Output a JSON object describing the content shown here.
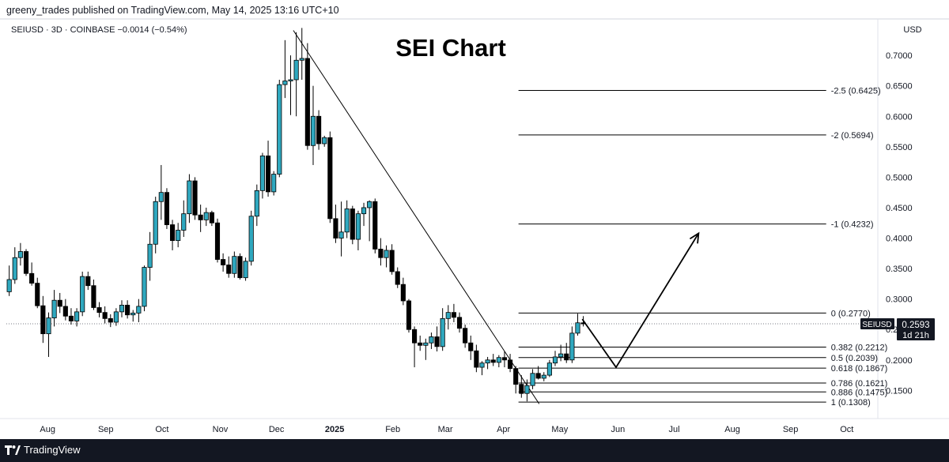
{
  "header": {
    "published_by": "greeny_trades published on TradingView.com, May 14, 2025 13:16 UTC+10"
  },
  "footer": {
    "brand": "TradingView"
  },
  "chart_data": {
    "type": "candlestick",
    "title": "SEI Chart",
    "symbol_line": "SEIUSD · 3D · COINBASE  −0.0014 (−0.54%)",
    "currency": "USD",
    "price_tag": {
      "symbol": "SEIUSD",
      "price": "0.2593",
      "countdown": "1d 21h",
      "value": 0.2593
    },
    "y_ticks": [
      0.15,
      0.2,
      0.25,
      0.3,
      0.35,
      0.4,
      0.45,
      0.5,
      0.55,
      0.6,
      0.65,
      0.7
    ],
    "y_tick_labels": [
      "0.1500",
      "0.2000",
      "0.2500",
      "0.3000",
      "0.3500",
      "0.4000",
      "0.4500",
      "0.5000",
      "0.5500",
      "0.6000",
      "0.6500",
      "0.7000"
    ],
    "ylim": [
      0.109,
      0.752
    ],
    "x_axis": {
      "start": "2024-07-10",
      "end": "2025-10-15",
      "labels": [
        {
          "date": "2024-08-01",
          "text": "Aug",
          "bold": false
        },
        {
          "date": "2024-09-01",
          "text": "Sep",
          "bold": false
        },
        {
          "date": "2024-10-01",
          "text": "Oct",
          "bold": false
        },
        {
          "date": "2024-11-01",
          "text": "Nov",
          "bold": false
        },
        {
          "date": "2024-12-01",
          "text": "Dec",
          "bold": false
        },
        {
          "date": "2025-01-01",
          "text": "2025",
          "bold": true
        },
        {
          "date": "2025-02-01",
          "text": "Feb",
          "bold": false
        },
        {
          "date": "2025-03-01",
          "text": "Mar",
          "bold": false
        },
        {
          "date": "2025-04-01",
          "text": "Apr",
          "bold": false
        },
        {
          "date": "2025-05-01",
          "text": "May",
          "bold": false
        },
        {
          "date": "2025-06-01",
          "text": "Jun",
          "bold": false
        },
        {
          "date": "2025-07-01",
          "text": "Jul",
          "bold": false
        },
        {
          "date": "2025-08-01",
          "text": "Aug",
          "bold": false
        },
        {
          "date": "2025-09-01",
          "text": "Sep",
          "bold": false
        },
        {
          "date": "2025-10-01",
          "text": "Oct",
          "bold": false
        }
      ]
    },
    "candle_interval_days": 3,
    "candles": [
      {
        "date": "2024-07-10",
        "o": 0.312,
        "h": 0.355,
        "l": 0.305,
        "c": 0.332
      },
      {
        "date": "2024-07-13",
        "o": 0.332,
        "h": 0.385,
        "l": 0.325,
        "c": 0.368
      },
      {
        "date": "2024-07-16",
        "o": 0.368,
        "h": 0.392,
        "l": 0.355,
        "c": 0.378
      },
      {
        "date": "2024-07-19",
        "o": 0.378,
        "h": 0.382,
        "l": 0.338,
        "c": 0.342
      },
      {
        "date": "2024-07-22",
        "o": 0.342,
        "h": 0.36,
        "l": 0.322,
        "c": 0.326
      },
      {
        "date": "2024-07-25",
        "o": 0.326,
        "h": 0.335,
        "l": 0.285,
        "c": 0.289
      },
      {
        "date": "2024-07-28",
        "o": 0.289,
        "h": 0.305,
        "l": 0.228,
        "c": 0.243
      },
      {
        "date": "2024-07-31",
        "o": 0.243,
        "h": 0.278,
        "l": 0.205,
        "c": 0.269
      },
      {
        "date": "2024-08-03",
        "o": 0.269,
        "h": 0.315,
        "l": 0.255,
        "c": 0.298
      },
      {
        "date": "2024-08-06",
        "o": 0.298,
        "h": 0.31,
        "l": 0.277,
        "c": 0.288
      },
      {
        "date": "2024-08-09",
        "o": 0.288,
        "h": 0.3,
        "l": 0.265,
        "c": 0.272
      },
      {
        "date": "2024-08-12",
        "o": 0.272,
        "h": 0.285,
        "l": 0.258,
        "c": 0.264
      },
      {
        "date": "2024-08-15",
        "o": 0.264,
        "h": 0.285,
        "l": 0.255,
        "c": 0.279
      },
      {
        "date": "2024-08-18",
        "o": 0.279,
        "h": 0.345,
        "l": 0.272,
        "c": 0.337
      },
      {
        "date": "2024-08-21",
        "o": 0.337,
        "h": 0.345,
        "l": 0.315,
        "c": 0.322
      },
      {
        "date": "2024-08-24",
        "o": 0.322,
        "h": 0.332,
        "l": 0.282,
        "c": 0.286
      },
      {
        "date": "2024-08-27",
        "o": 0.286,
        "h": 0.295,
        "l": 0.27,
        "c": 0.278
      },
      {
        "date": "2024-08-30",
        "o": 0.278,
        "h": 0.288,
        "l": 0.26,
        "c": 0.268
      },
      {
        "date": "2024-09-02",
        "o": 0.268,
        "h": 0.275,
        "l": 0.254,
        "c": 0.262
      },
      {
        "date": "2024-09-05",
        "o": 0.262,
        "h": 0.285,
        "l": 0.256,
        "c": 0.279
      },
      {
        "date": "2024-09-08",
        "o": 0.279,
        "h": 0.298,
        "l": 0.27,
        "c": 0.29
      },
      {
        "date": "2024-09-11",
        "o": 0.29,
        "h": 0.298,
        "l": 0.268,
        "c": 0.274
      },
      {
        "date": "2024-09-14",
        "o": 0.274,
        "h": 0.282,
        "l": 0.263,
        "c": 0.277
      },
      {
        "date": "2024-09-17",
        "o": 0.277,
        "h": 0.3,
        "l": 0.262,
        "c": 0.288
      },
      {
        "date": "2024-09-20",
        "o": 0.288,
        "h": 0.355,
        "l": 0.28,
        "c": 0.352
      },
      {
        "date": "2024-09-23",
        "o": 0.352,
        "h": 0.41,
        "l": 0.33,
        "c": 0.39
      },
      {
        "date": "2024-09-26",
        "o": 0.39,
        "h": 0.468,
        "l": 0.375,
        "c": 0.46
      },
      {
        "date": "2024-09-29",
        "o": 0.46,
        "h": 0.52,
        "l": 0.43,
        "c": 0.475
      },
      {
        "date": "2024-10-02",
        "o": 0.475,
        "h": 0.482,
        "l": 0.415,
        "c": 0.422
      },
      {
        "date": "2024-10-05",
        "o": 0.422,
        "h": 0.43,
        "l": 0.38,
        "c": 0.396
      },
      {
        "date": "2024-10-08",
        "o": 0.396,
        "h": 0.425,
        "l": 0.385,
        "c": 0.413
      },
      {
        "date": "2024-10-11",
        "o": 0.413,
        "h": 0.462,
        "l": 0.402,
        "c": 0.44
      },
      {
        "date": "2024-10-14",
        "o": 0.44,
        "h": 0.505,
        "l": 0.425,
        "c": 0.494
      },
      {
        "date": "2024-10-17",
        "o": 0.494,
        "h": 0.5,
        "l": 0.43,
        "c": 0.438
      },
      {
        "date": "2024-10-20",
        "o": 0.438,
        "h": 0.455,
        "l": 0.41,
        "c": 0.43
      },
      {
        "date": "2024-10-23",
        "o": 0.43,
        "h": 0.45,
        "l": 0.42,
        "c": 0.442
      },
      {
        "date": "2024-10-26",
        "o": 0.442,
        "h": 0.445,
        "l": 0.42,
        "c": 0.425
      },
      {
        "date": "2024-10-29",
        "o": 0.425,
        "h": 0.432,
        "l": 0.36,
        "c": 0.365
      },
      {
        "date": "2024-11-01",
        "o": 0.365,
        "h": 0.375,
        "l": 0.345,
        "c": 0.356
      },
      {
        "date": "2024-11-04",
        "o": 0.356,
        "h": 0.37,
        "l": 0.335,
        "c": 0.342
      },
      {
        "date": "2024-11-07",
        "o": 0.342,
        "h": 0.378,
        "l": 0.335,
        "c": 0.37
      },
      {
        "date": "2024-11-10",
        "o": 0.37,
        "h": 0.375,
        "l": 0.332,
        "c": 0.335
      },
      {
        "date": "2024-11-13",
        "o": 0.335,
        "h": 0.368,
        "l": 0.33,
        "c": 0.362
      },
      {
        "date": "2024-11-16",
        "o": 0.362,
        "h": 0.445,
        "l": 0.355,
        "c": 0.436
      },
      {
        "date": "2024-11-19",
        "o": 0.436,
        "h": 0.488,
        "l": 0.42,
        "c": 0.478
      },
      {
        "date": "2024-11-22",
        "o": 0.478,
        "h": 0.54,
        "l": 0.465,
        "c": 0.535
      },
      {
        "date": "2024-11-25",
        "o": 0.535,
        "h": 0.56,
        "l": 0.468,
        "c": 0.476
      },
      {
        "date": "2024-11-28",
        "o": 0.476,
        "h": 0.51,
        "l": 0.47,
        "c": 0.505
      },
      {
        "date": "2024-12-01",
        "o": 0.505,
        "h": 0.66,
        "l": 0.5,
        "c": 0.652
      },
      {
        "date": "2024-12-04",
        "o": 0.652,
        "h": 0.725,
        "l": 0.63,
        "c": 0.658
      },
      {
        "date": "2024-12-07",
        "o": 0.658,
        "h": 0.7,
        "l": 0.602,
        "c": 0.66
      },
      {
        "date": "2024-12-10",
        "o": 0.66,
        "h": 0.738,
        "l": 0.6,
        "c": 0.692
      },
      {
        "date": "2024-12-13",
        "o": 0.692,
        "h": 0.745,
        "l": 0.66,
        "c": 0.695
      },
      {
        "date": "2024-12-16",
        "o": 0.695,
        "h": 0.72,
        "l": 0.545,
        "c": 0.552
      },
      {
        "date": "2024-12-19",
        "o": 0.552,
        "h": 0.65,
        "l": 0.52,
        "c": 0.6
      },
      {
        "date": "2024-12-22",
        "o": 0.6,
        "h": 0.61,
        "l": 0.545,
        "c": 0.555
      },
      {
        "date": "2024-12-25",
        "o": 0.555,
        "h": 0.568,
        "l": 0.55,
        "c": 0.565
      },
      {
        "date": "2024-12-28",
        "o": 0.565,
        "h": 0.575,
        "l": 0.425,
        "c": 0.432
      },
      {
        "date": "2024-12-31",
        "o": 0.432,
        "h": 0.455,
        "l": 0.392,
        "c": 0.4
      },
      {
        "date": "2025-01-03",
        "o": 0.4,
        "h": 0.46,
        "l": 0.37,
        "c": 0.41
      },
      {
        "date": "2025-01-06",
        "o": 0.41,
        "h": 0.462,
        "l": 0.4,
        "c": 0.448
      },
      {
        "date": "2025-01-09",
        "o": 0.448,
        "h": 0.453,
        "l": 0.39,
        "c": 0.398
      },
      {
        "date": "2025-01-12",
        "o": 0.398,
        "h": 0.445,
        "l": 0.38,
        "c": 0.44
      },
      {
        "date": "2025-01-15",
        "o": 0.44,
        "h": 0.458,
        "l": 0.42,
        "c": 0.45
      },
      {
        "date": "2025-01-18",
        "o": 0.45,
        "h": 0.462,
        "l": 0.395,
        "c": 0.46
      },
      {
        "date": "2025-01-21",
        "o": 0.46,
        "h": 0.465,
        "l": 0.375,
        "c": 0.382
      },
      {
        "date": "2025-01-24",
        "o": 0.382,
        "h": 0.4,
        "l": 0.355,
        "c": 0.368
      },
      {
        "date": "2025-01-27",
        "o": 0.368,
        "h": 0.388,
        "l": 0.352,
        "c": 0.38
      },
      {
        "date": "2025-01-30",
        "o": 0.38,
        "h": 0.39,
        "l": 0.34,
        "c": 0.345
      },
      {
        "date": "2025-02-02",
        "o": 0.345,
        "h": 0.352,
        "l": 0.318,
        "c": 0.324
      },
      {
        "date": "2025-02-05",
        "o": 0.324,
        "h": 0.335,
        "l": 0.29,
        "c": 0.297
      },
      {
        "date": "2025-02-08",
        "o": 0.297,
        "h": 0.3,
        "l": 0.245,
        "c": 0.25
      },
      {
        "date": "2025-02-11",
        "o": 0.25,
        "h": 0.255,
        "l": 0.188,
        "c": 0.228
      },
      {
        "date": "2025-02-14",
        "o": 0.228,
        "h": 0.24,
        "l": 0.215,
        "c": 0.224
      },
      {
        "date": "2025-02-17",
        "o": 0.224,
        "h": 0.235,
        "l": 0.2,
        "c": 0.228
      },
      {
        "date": "2025-02-20",
        "o": 0.228,
        "h": 0.245,
        "l": 0.218,
        "c": 0.238
      },
      {
        "date": "2025-02-23",
        "o": 0.238,
        "h": 0.255,
        "l": 0.214,
        "c": 0.222
      },
      {
        "date": "2025-02-26",
        "o": 0.222,
        "h": 0.285,
        "l": 0.215,
        "c": 0.268
      },
      {
        "date": "2025-03-01",
        "o": 0.268,
        "h": 0.29,
        "l": 0.25,
        "c": 0.278
      },
      {
        "date": "2025-03-04",
        "o": 0.278,
        "h": 0.292,
        "l": 0.262,
        "c": 0.27
      },
      {
        "date": "2025-03-07",
        "o": 0.27,
        "h": 0.278,
        "l": 0.245,
        "c": 0.252
      },
      {
        "date": "2025-03-10",
        "o": 0.252,
        "h": 0.258,
        "l": 0.22,
        "c": 0.228
      },
      {
        "date": "2025-03-13",
        "o": 0.228,
        "h": 0.24,
        "l": 0.2,
        "c": 0.215
      },
      {
        "date": "2025-03-16",
        "o": 0.215,
        "h": 0.225,
        "l": 0.18,
        "c": 0.188
      },
      {
        "date": "2025-03-19",
        "o": 0.188,
        "h": 0.198,
        "l": 0.175,
        "c": 0.195
      },
      {
        "date": "2025-03-22",
        "o": 0.195,
        "h": 0.205,
        "l": 0.185,
        "c": 0.2
      },
      {
        "date": "2025-03-25",
        "o": 0.2,
        "h": 0.21,
        "l": 0.19,
        "c": 0.196
      },
      {
        "date": "2025-03-28",
        "o": 0.196,
        "h": 0.208,
        "l": 0.188,
        "c": 0.204
      },
      {
        "date": "2025-03-31",
        "o": 0.204,
        "h": 0.214,
        "l": 0.188,
        "c": 0.2
      },
      {
        "date": "2025-04-03",
        "o": 0.2,
        "h": 0.21,
        "l": 0.18,
        "c": 0.186
      },
      {
        "date": "2025-04-06",
        "o": 0.186,
        "h": 0.19,
        "l": 0.145,
        "c": 0.16
      },
      {
        "date": "2025-04-09",
        "o": 0.16,
        "h": 0.175,
        "l": 0.138,
        "c": 0.145
      },
      {
        "date": "2025-04-12",
        "o": 0.145,
        "h": 0.168,
        "l": 0.132,
        "c": 0.158
      },
      {
        "date": "2025-04-15",
        "o": 0.158,
        "h": 0.185,
        "l": 0.152,
        "c": 0.178
      },
      {
        "date": "2025-04-18",
        "o": 0.178,
        "h": 0.19,
        "l": 0.168,
        "c": 0.17
      },
      {
        "date": "2025-04-21",
        "o": 0.17,
        "h": 0.18,
        "l": 0.165,
        "c": 0.175
      },
      {
        "date": "2025-04-24",
        "o": 0.175,
        "h": 0.2,
        "l": 0.172,
        "c": 0.195
      },
      {
        "date": "2025-04-27",
        "o": 0.195,
        "h": 0.215,
        "l": 0.19,
        "c": 0.205
      },
      {
        "date": "2025-04-30",
        "o": 0.205,
        "h": 0.225,
        "l": 0.198,
        "c": 0.21
      },
      {
        "date": "2025-05-03",
        "o": 0.21,
        "h": 0.228,
        "l": 0.195,
        "c": 0.2
      },
      {
        "date": "2025-05-06",
        "o": 0.2,
        "h": 0.255,
        "l": 0.195,
        "c": 0.244
      },
      {
        "date": "2025-05-09",
        "o": 0.244,
        "h": 0.276,
        "l": 0.24,
        "c": 0.261
      },
      {
        "date": "2025-05-12",
        "o": 0.261,
        "h": 0.272,
        "l": 0.255,
        "c": 0.2593
      }
    ],
    "fib_levels": [
      {
        "label": "-2.5 (0.6425)",
        "value": 0.6425,
        "from": "2025-04-09",
        "to": "2025-09-20"
      },
      {
        "label": "-2 (0.5694)",
        "value": 0.5694,
        "from": "2025-04-09",
        "to": "2025-09-20"
      },
      {
        "label": "-1 (0.4232)",
        "value": 0.4232,
        "from": "2025-04-09",
        "to": "2025-09-20"
      },
      {
        "label": "0 (0.2770)",
        "value": 0.277,
        "from": "2025-04-09",
        "to": "2025-09-20"
      },
      {
        "label": "0.382 (0.2212)",
        "value": 0.2212,
        "from": "2025-04-09",
        "to": "2025-09-20"
      },
      {
        "label": "0.5 (0.2039)",
        "value": 0.2039,
        "from": "2025-04-09",
        "to": "2025-09-20"
      },
      {
        "label": "0.618 (0.1867)",
        "value": 0.1867,
        "from": "2025-04-09",
        "to": "2025-09-20"
      },
      {
        "label": "0.786 (0.1621)",
        "value": 0.1621,
        "from": "2025-04-09",
        "to": "2025-09-20"
      },
      {
        "label": "0.886 (0.1475)",
        "value": 0.1475,
        "from": "2025-04-09",
        "to": "2025-09-20"
      },
      {
        "label": "1 (0.1308)",
        "value": 0.1308,
        "from": "2025-04-09",
        "to": "2025-09-20"
      }
    ],
    "trendline": {
      "from": {
        "date": "2024-12-10",
        "value": 0.741
      },
      "to": {
        "date": "2025-04-20",
        "value": 0.128
      }
    },
    "projection_path": [
      {
        "date": "2025-05-13",
        "value": 0.267
      },
      {
        "date": "2025-05-31",
        "value": 0.188
      },
      {
        "date": "2025-07-14",
        "value": 0.408
      }
    ],
    "colors": {
      "up": "#26a69a",
      "down": "#000000",
      "up_fill": "#2fa8bf",
      "text": "#131722",
      "price_tag": "#131722"
    }
  }
}
